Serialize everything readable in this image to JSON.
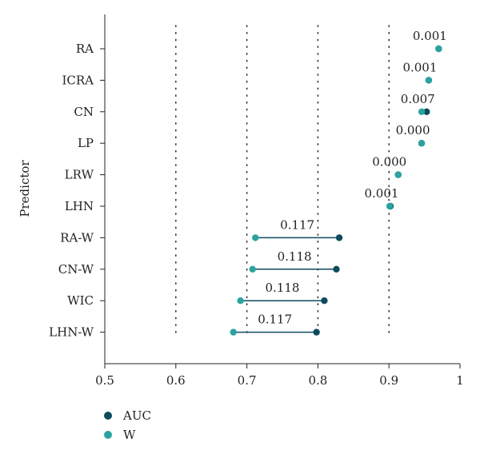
{
  "chart_data": {
    "type": "dumbbell",
    "title": "",
    "xlabel": "",
    "ylabel": "Predictor",
    "xlim": [
      0.5,
      1.0
    ],
    "xticks": [
      0.5,
      0.6,
      0.7,
      0.8,
      0.9,
      1.0
    ],
    "xtick_labels": [
      "0.5",
      "0.6",
      "0.7",
      "0.8",
      "0.9",
      "1"
    ],
    "vertical_gridlines": [
      0.6,
      0.7,
      0.8,
      0.9
    ],
    "series_names": [
      "AUC",
      "W"
    ],
    "colors": {
      "AUC": "#0d4b5e",
      "W": "#2aa3a0"
    },
    "rows": [
      {
        "label": "RA",
        "auc": 0.97,
        "w": 0.97,
        "annotation": "0.001"
      },
      {
        "label": "ICRA",
        "auc": 0.956,
        "w": 0.956,
        "annotation": "0.001"
      },
      {
        "label": "CN",
        "auc": 0.953,
        "w": 0.946,
        "annotation": "0.007"
      },
      {
        "label": "LP",
        "auc": 0.946,
        "w": 0.946,
        "annotation": "0.000"
      },
      {
        "label": "LRW",
        "auc": 0.913,
        "w": 0.913,
        "annotation": "0.000"
      },
      {
        "label": "LHN",
        "auc": 0.902,
        "w": 0.901,
        "annotation": "0.001"
      },
      {
        "label": "RA-W",
        "auc": 0.83,
        "w": 0.712,
        "annotation": "0.117"
      },
      {
        "label": "CN-W",
        "auc": 0.826,
        "w": 0.708,
        "annotation": "0.118"
      },
      {
        "label": "WIC",
        "auc": 0.809,
        "w": 0.691,
        "annotation": "0.118"
      },
      {
        "label": "LHN-W",
        "auc": 0.798,
        "w": 0.681,
        "annotation": "0.117"
      }
    ]
  },
  "legend": {
    "items": [
      {
        "label": "AUC",
        "color": "#0d4b5e"
      },
      {
        "label": "W",
        "color": "#2aa3a0"
      }
    ]
  }
}
